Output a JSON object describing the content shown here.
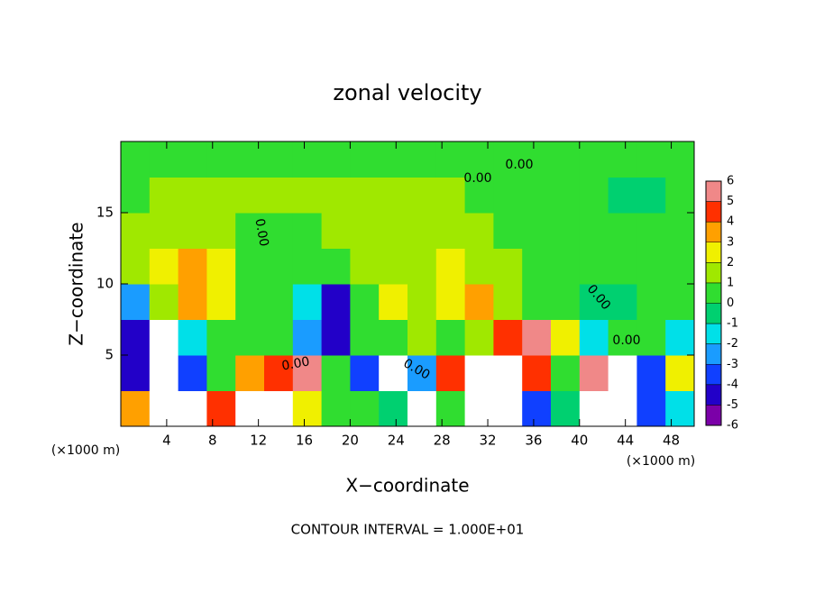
{
  "chart_data": {
    "type": "contour",
    "title": "zonal velocity",
    "xlabel": "X−coordinate",
    "ylabel": "Z−coordinate",
    "x_unit_label": "(×1000 m)",
    "footer": "CONTOUR INTERVAL = 1.000E+01",
    "contour_labels": [
      "0.00",
      "0.00",
      "0.00",
      "0.00",
      "0.00",
      "0.00",
      "0.00"
    ],
    "xlim": [
      0,
      50
    ],
    "ylim": [
      0,
      20
    ],
    "xticks": [
      4,
      8,
      12,
      16,
      20,
      24,
      28,
      32,
      36,
      40,
      44,
      48
    ],
    "yticks": [
      5,
      10,
      15
    ],
    "x": [
      1.25,
      3.75,
      6.25,
      8.75,
      11.25,
      13.75,
      16.25,
      18.75,
      21.25,
      23.75,
      26.25,
      28.75,
      31.25,
      33.75,
      36.25,
      38.75,
      41.25,
      43.75,
      46.25,
      48.75
    ],
    "y": [
      1.25,
      3.75,
      6.25,
      8.75,
      11.25,
      13.75,
      16.25,
      18.75
    ],
    "z": [
      [
        3,
        -8,
        -8,
        4,
        -8,
        -8,
        2,
        0,
        0,
        -1,
        -8,
        0,
        -8,
        -8,
        -4,
        -1,
        -8,
        -8,
        -4,
        -2
      ],
      [
        -5,
        -8,
        -4,
        0,
        3,
        4,
        5,
        0,
        -4,
        -7,
        -3,
        4,
        7,
        7,
        4,
        0,
        5,
        7,
        -4,
        2
      ],
      [
        -5,
        -7,
        -2,
        0,
        0,
        0,
        -3,
        -5,
        0,
        0,
        1,
        0,
        1,
        4,
        5,
        2,
        -2,
        0,
        0,
        -2
      ],
      [
        -3,
        1,
        3,
        2,
        0,
        0,
        -2,
        -5,
        0,
        2,
        1,
        2,
        3,
        1,
        0,
        0,
        -1,
        -1,
        0,
        0
      ],
      [
        1,
        2,
        3,
        2,
        0,
        0,
        0,
        0,
        1,
        1,
        1,
        2,
        1,
        1,
        0,
        0,
        0,
        0,
        0,
        0
      ],
      [
        1,
        1,
        1,
        1,
        0,
        0,
        0,
        1,
        1,
        1,
        1,
        1,
        1,
        0,
        0,
        0,
        0,
        0,
        0,
        0
      ],
      [
        0,
        1,
        1,
        1,
        1,
        1,
        1,
        1,
        1,
        1,
        1,
        1,
        0,
        0,
        0,
        0,
        0,
        -1,
        -1,
        0
      ],
      [
        0,
        0,
        0,
        0,
        0,
        0,
        0,
        0,
        0,
        0,
        0,
        0,
        0,
        0,
        0,
        0,
        0,
        0,
        0,
        0
      ]
    ],
    "colorbar_ticks": [
      -6,
      -5,
      -4,
      -3,
      -2,
      -1,
      0,
      1,
      2,
      3,
      4,
      5,
      6
    ],
    "colors": [
      "#7b00a8",
      "#2200c8",
      "#1040ff",
      "#1a9cff",
      "#00e0e8",
      "#00d070",
      "#30dd30",
      "#a0e800",
      "#f0f000",
      "#ffa000",
      "#ff3000",
      "#f08888"
    ],
    "out_of_range_color": "#ffffff"
  }
}
